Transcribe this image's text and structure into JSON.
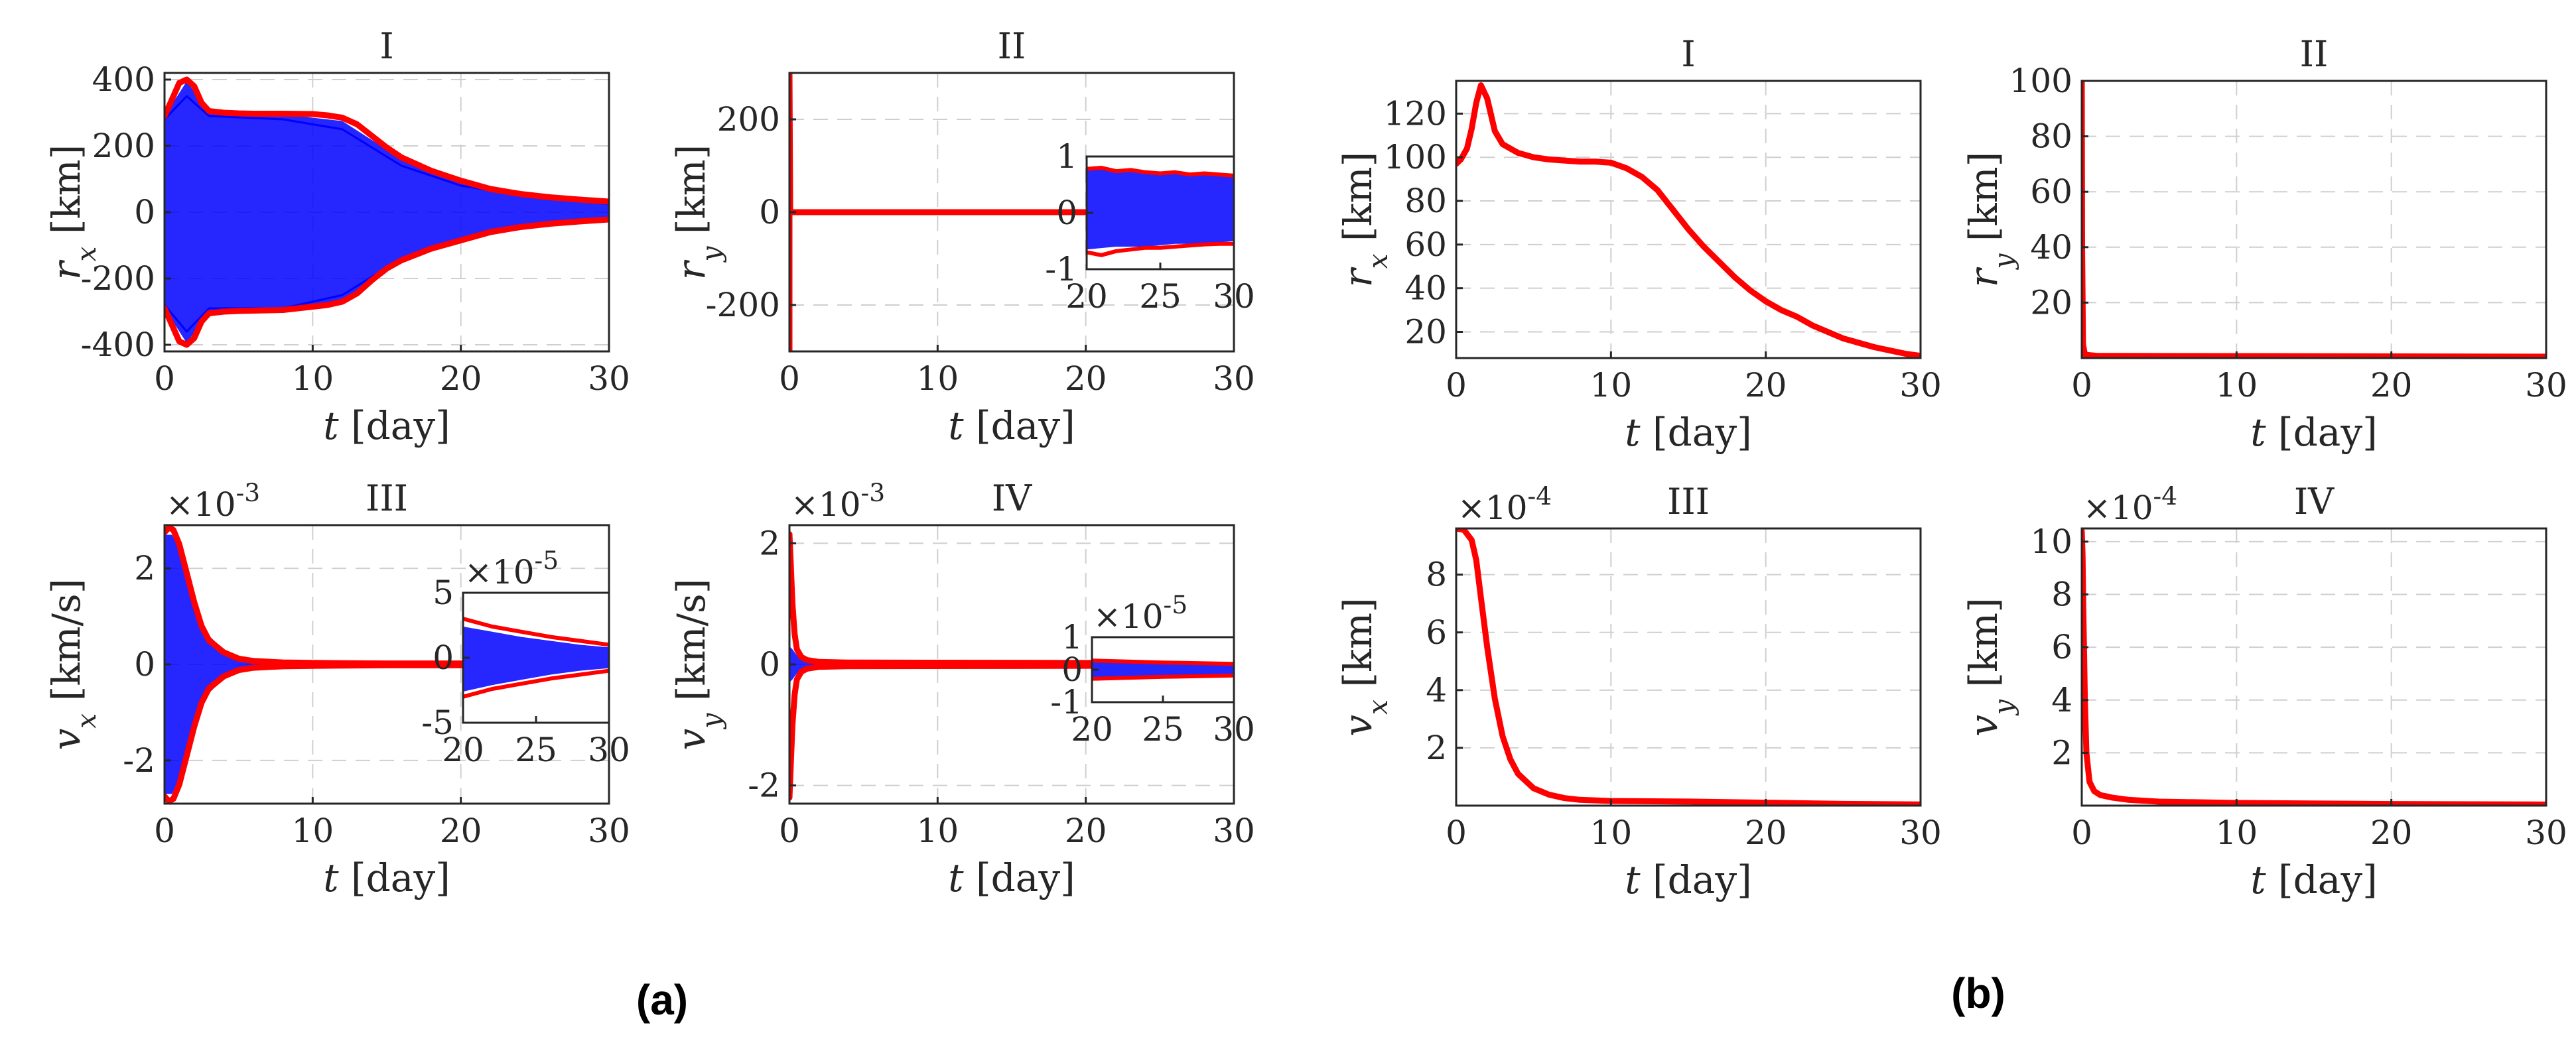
{
  "panel_labels": [
    "(a)",
    "(b)"
  ],
  "chart_data": [
    {
      "panel": "(a)",
      "type": "line",
      "title": "I",
      "xlabel": "t [day]",
      "ylabel": "r_x [km]",
      "xlim": [
        0,
        30
      ],
      "ylim": [
        -420,
        420
      ],
      "xticks": [
        0,
        10,
        20,
        30
      ],
      "yticks": [
        -400,
        -200,
        0,
        200,
        400
      ],
      "grid": true,
      "band": {
        "x": [
          0,
          1.5,
          3,
          8,
          12,
          16,
          20,
          25,
          30
        ],
        "upper": [
          290,
          395,
          300,
          295,
          275,
          160,
          90,
          50,
          30
        ],
        "lower": [
          -290,
          -395,
          -300,
          -295,
          -265,
          -150,
          -85,
          -45,
          -25
        ]
      },
      "series": [
        {
          "color": "#0000ff",
          "x": [
            0,
            1.5,
            3,
            8,
            12,
            16,
            20,
            25,
            30
          ],
          "values": [
            280,
            350,
            290,
            280,
            250,
            140,
            80,
            45,
            25
          ]
        },
        {
          "color": "#0000ff",
          "x": [
            0,
            1.5,
            3,
            8,
            12,
            16,
            20,
            25,
            30
          ],
          "values": [
            -280,
            -360,
            -290,
            -290,
            -250,
            -140,
            -80,
            -40,
            -20
          ]
        },
        {
          "color": "#ff0000",
          "x": [
            0,
            0.5,
            1,
            1.5,
            2,
            2.5,
            3,
            4,
            5,
            6,
            8,
            10,
            11,
            12,
            13,
            14,
            15,
            16,
            18,
            20,
            22,
            24,
            26,
            28,
            30
          ],
          "values": [
            290,
            340,
            390,
            400,
            380,
            330,
            305,
            300,
            298,
            297,
            297,
            296,
            292,
            285,
            265,
            230,
            195,
            165,
            125,
            95,
            70,
            55,
            45,
            38,
            32
          ]
        },
        {
          "color": "#ff0000",
          "x": [
            0,
            0.5,
            1,
            1.5,
            2,
            2.5,
            3,
            4,
            5,
            6,
            8,
            10,
            11,
            12,
            13,
            14,
            15,
            16,
            18,
            20,
            22,
            24,
            26,
            28,
            30
          ],
          "values": [
            -290,
            -340,
            -390,
            -400,
            -380,
            -330,
            -305,
            -300,
            -298,
            -297,
            -295,
            -285,
            -280,
            -270,
            -245,
            -205,
            -170,
            -145,
            -110,
            -85,
            -60,
            -45,
            -35,
            -28,
            -22
          ]
        }
      ]
    },
    {
      "panel": "(a)",
      "type": "line",
      "title": "II",
      "xlabel": "t [day]",
      "ylabel": "r_y [km]",
      "xlim": [
        0,
        30
      ],
      "ylim": [
        -300,
        300
      ],
      "xticks": [
        0,
        10,
        20,
        30
      ],
      "yticks": [
        -200,
        0,
        200
      ],
      "grid": true,
      "series": [
        {
          "color": "#ff0000",
          "x": [
            0,
            0,
            0.05,
            30
          ],
          "values": [
            -300,
            300,
            0,
            0
          ]
        }
      ],
      "inset": {
        "xlim": [
          20,
          30
        ],
        "ylim": [
          -1,
          1
        ],
        "xticks": [
          20,
          25,
          30
        ],
        "yticks": [
          -1,
          0,
          1
        ],
        "band": {
          "x": [
            20,
            22,
            24,
            26,
            28,
            30
          ],
          "upper": [
            0.8,
            0.75,
            0.7,
            0.7,
            0.68,
            0.65
          ],
          "lower": [
            -0.65,
            -0.6,
            -0.6,
            -0.55,
            -0.55,
            -0.5
          ]
        },
        "series": [
          {
            "color": "#ff0000",
            "x": [
              20,
              21,
              22,
              23,
              24,
              25,
              26,
              27,
              28,
              29,
              30
            ],
            "values": [
              0.78,
              0.8,
              0.74,
              0.76,
              0.72,
              0.7,
              0.72,
              0.68,
              0.7,
              0.68,
              0.66
            ]
          },
          {
            "color": "#ff0000",
            "x": [
              20,
              21,
              22,
              23,
              24,
              25,
              26,
              27,
              28,
              29,
              30
            ],
            "values": [
              -0.7,
              -0.75,
              -0.68,
              -0.65,
              -0.62,
              -0.62,
              -0.6,
              -0.58,
              -0.56,
              -0.55,
              -0.55
            ]
          }
        ]
      }
    },
    {
      "panel": "(a)",
      "type": "line",
      "title": "III",
      "xlabel": "t [day]",
      "ylabel": "v_x [km/s]",
      "xlim": [
        0,
        30
      ],
      "ylim": [
        -2.9,
        2.9
      ],
      "y_multiplier": "×10^-3",
      "xticks": [
        0,
        10,
        20,
        30
      ],
      "yticks": [
        -2,
        0,
        2
      ],
      "grid": true,
      "band": {
        "x": [
          0,
          0.5,
          1,
          1.5,
          2,
          3,
          4,
          5,
          7,
          10,
          15,
          20,
          30
        ],
        "upper": [
          2.7,
          2.7,
          2.4,
          1.8,
          1.2,
          0.6,
          0.3,
          0.15,
          0.06,
          0.03,
          0.02,
          0.01,
          0.01
        ],
        "lower": [
          -2.7,
          -2.7,
          -2.4,
          -1.8,
          -1.2,
          -0.6,
          -0.3,
          -0.15,
          -0.06,
          -0.03,
          -0.02,
          -0.01,
          -0.01
        ]
      },
      "series": [
        {
          "color": "#ff0000",
          "x": [
            0,
            0.3,
            0.6,
            1,
            1.5,
            2,
            2.5,
            3,
            4,
            5,
            6,
            8,
            10,
            15,
            20,
            30
          ],
          "values": [
            2.75,
            2.85,
            2.8,
            2.5,
            1.9,
            1.3,
            0.8,
            0.5,
            0.25,
            0.12,
            0.07,
            0.04,
            0.03,
            0.02,
            0.02,
            0.02
          ]
        },
        {
          "color": "#ff0000",
          "x": [
            0,
            0.3,
            0.6,
            1,
            1.5,
            2,
            2.5,
            3,
            4,
            5,
            6,
            8,
            10,
            15,
            20,
            30
          ],
          "values": [
            -2.75,
            -2.85,
            -2.8,
            -2.5,
            -1.9,
            -1.3,
            -0.8,
            -0.5,
            -0.25,
            -0.12,
            -0.07,
            -0.04,
            -0.03,
            -0.02,
            -0.02,
            -0.02
          ]
        }
      ],
      "inset": {
        "xlim": [
          20,
          30
        ],
        "ylim": [
          -5,
          5
        ],
        "y_multiplier": "×10^-5",
        "xticks": [
          20,
          25,
          30
        ],
        "yticks": [
          -5,
          0,
          5
        ],
        "band": {
          "x": [
            20,
            22,
            24,
            26,
            28,
            30
          ],
          "upper": [
            2.4,
            2.0,
            1.6,
            1.3,
            1.0,
            0.8
          ],
          "lower": [
            -2.6,
            -2.1,
            -1.7,
            -1.3,
            -1.0,
            -0.8
          ]
        },
        "series": [
          {
            "color": "#ff0000",
            "x": [
              20,
              22,
              24,
              26,
              28,
              30
            ],
            "values": [
              3.0,
              2.4,
              2.0,
              1.6,
              1.3,
              1.0
            ]
          },
          {
            "color": "#ff0000",
            "x": [
              20,
              22,
              24,
              26,
              28,
              30
            ],
            "values": [
              -3.0,
              -2.4,
              -2.0,
              -1.6,
              -1.3,
              -1.0
            ]
          }
        ]
      }
    },
    {
      "panel": "(a)",
      "type": "line",
      "title": "IV",
      "xlabel": "t [day]",
      "ylabel": "v_y [km/s]",
      "xlim": [
        0,
        30
      ],
      "ylim": [
        -2.3,
        2.3
      ],
      "y_multiplier": "×10^-3",
      "xticks": [
        0,
        10,
        20,
        30
      ],
      "yticks": [
        -2,
        0,
        2
      ],
      "grid": true,
      "band": {
        "x": [
          0,
          0.2,
          0.5,
          1,
          2,
          30
        ],
        "upper": [
          0.3,
          0.25,
          0.15,
          0.08,
          0.05,
          0.02
        ],
        "lower": [
          -0.3,
          -0.25,
          -0.15,
          -0.08,
          -0.05,
          -0.02
        ]
      },
      "series": [
        {
          "color": "#ff0000",
          "x": [
            0,
            0.1,
            0.2,
            0.35,
            0.5,
            0.8,
            1.2,
            2,
            4,
            30
          ],
          "values": [
            2.15,
            1.6,
            1.0,
            0.5,
            0.25,
            0.12,
            0.07,
            0.04,
            0.03,
            0.02
          ]
        },
        {
          "color": "#ff0000",
          "x": [
            0,
            0.1,
            0.2,
            0.35,
            0.5,
            0.8,
            1.2,
            2,
            4,
            30
          ],
          "values": [
            -2.2,
            -1.6,
            -1.0,
            -0.5,
            -0.25,
            -0.12,
            -0.07,
            -0.04,
            -0.03,
            -0.02
          ]
        }
      ],
      "inset": {
        "xlim": [
          20,
          30
        ],
        "ylim": [
          -1,
          1
        ],
        "y_multiplier": "×10^-5",
        "xticks": [
          20,
          25,
          30
        ],
        "yticks": [
          -1,
          0,
          1
        ],
        "band": {
          "x": [
            20,
            25,
            30
          ],
          "upper": [
            0.25,
            0.2,
            0.15
          ],
          "lower": [
            -0.25,
            -0.2,
            -0.15
          ]
        },
        "series": [
          {
            "color": "#ff0000",
            "x": [
              20,
              25,
              30
            ],
            "values": [
              0.28,
              0.22,
              0.18
            ]
          },
          {
            "color": "#ff0000",
            "x": [
              20,
              25,
              30
            ],
            "values": [
              -0.28,
              -0.22,
              -0.18
            ]
          }
        ]
      }
    },
    {
      "panel": "(b)",
      "type": "line",
      "title": "I",
      "xlabel": "t [day]",
      "ylabel": "r_x [km]",
      "xlim": [
        0,
        30
      ],
      "ylim": [
        8,
        135
      ],
      "xticks": [
        0,
        10,
        20,
        30
      ],
      "yticks": [
        20,
        40,
        60,
        80,
        100,
        120
      ],
      "grid": true,
      "series": [
        {
          "color": "#ff0000",
          "x": [
            0,
            0.3,
            0.7,
            1,
            1.3,
            1.6,
            2,
            2.5,
            3,
            4,
            5,
            6,
            7,
            8,
            9,
            10,
            11,
            12,
            13,
            14,
            15,
            16,
            17,
            18,
            19,
            20,
            21,
            22,
            23,
            24,
            25,
            26,
            27,
            28,
            29,
            30
          ],
          "values": [
            97,
            99,
            104,
            113,
            125,
            133,
            127,
            112,
            106,
            102,
            100,
            99,
            98.5,
            98,
            98,
            97.5,
            95,
            91,
            85,
            76,
            67,
            59,
            52,
            45,
            39,
            34,
            30,
            27,
            23,
            20,
            17,
            15,
            13,
            11.5,
            10,
            9
          ]
        }
      ]
    },
    {
      "panel": "(b)",
      "type": "line",
      "title": "II",
      "xlabel": "t [day]",
      "ylabel": "r_y [km]",
      "xlim": [
        0,
        30
      ],
      "ylim": [
        0,
        100
      ],
      "xticks": [
        0,
        10,
        20,
        30
      ],
      "yticks": [
        20,
        40,
        60,
        80,
        100
      ],
      "grid": true,
      "series": [
        {
          "color": "#ff0000",
          "x": [
            0,
            0.02,
            0.08,
            0.2,
            1,
            30
          ],
          "values": [
            100,
            40,
            5,
            1.2,
            0.8,
            0.5
          ]
        }
      ]
    },
    {
      "panel": "(b)",
      "type": "line",
      "title": "III",
      "xlabel": "t [day]",
      "ylabel": "v_x [km]",
      "xlim": [
        0,
        30
      ],
      "ylim": [
        0,
        9.6
      ],
      "y_multiplier": "×10^-4",
      "xticks": [
        0,
        10,
        20,
        30
      ],
      "yticks": [
        2,
        4,
        6,
        8
      ],
      "grid": true,
      "series": [
        {
          "color": "#ff0000",
          "x": [
            0,
            0.5,
            1,
            1.3,
            1.6,
            2,
            2.5,
            3,
            3.5,
            4,
            5,
            6,
            7,
            8,
            10,
            15,
            20,
            25,
            30
          ],
          "values": [
            9.6,
            9.55,
            9.2,
            8.5,
            7.2,
            5.5,
            3.7,
            2.4,
            1.6,
            1.1,
            0.6,
            0.38,
            0.26,
            0.2,
            0.16,
            0.14,
            0.1,
            0.06,
            0.04
          ]
        }
      ]
    },
    {
      "panel": "(b)",
      "type": "line",
      "title": "IV",
      "xlabel": "t [day]",
      "ylabel": "v_y [km]",
      "xlim": [
        0,
        30
      ],
      "ylim": [
        0,
        10.5
      ],
      "y_multiplier": "×10^-4",
      "xticks": [
        0,
        10,
        20,
        30
      ],
      "yticks": [
        2,
        4,
        6,
        8,
        10
      ],
      "grid": true,
      "series": [
        {
          "color": "#ff0000",
          "x": [
            0,
            0.05,
            0.1,
            0.2,
            0.3,
            0.5,
            0.8,
            1.2,
            2,
            3,
            5,
            10,
            20,
            30
          ],
          "values": [
            10.4,
            9.5,
            7.5,
            4.0,
            2.0,
            0.9,
            0.55,
            0.4,
            0.3,
            0.22,
            0.15,
            0.1,
            0.06,
            0.04
          ]
        }
      ]
    }
  ]
}
